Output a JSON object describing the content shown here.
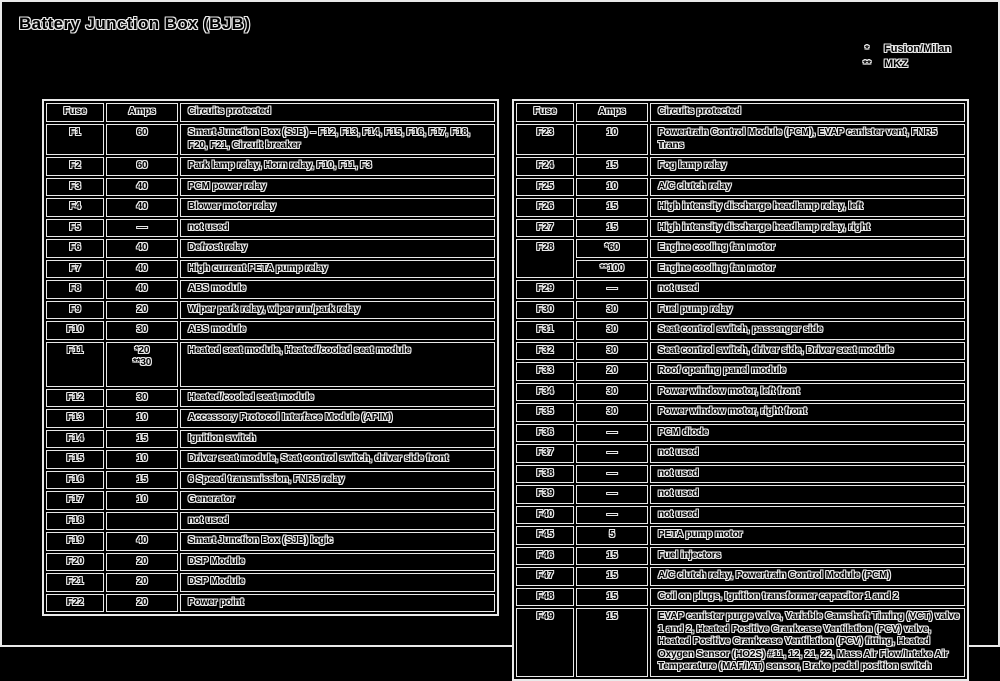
{
  "title": "Battery Junction Box (BJB)",
  "colors": {
    "background": "#000000",
    "line": "#e9e9e9"
  },
  "legend": [
    {
      "marker": "*",
      "label": "Fusion/Milan"
    },
    {
      "marker": "**",
      "label": "MKZ"
    }
  ],
  "tables": [
    {
      "name": "left",
      "headers": [
        "Fuse",
        "Amps",
        "Circuits protected"
      ],
      "rows": [
        {
          "fuse": "F1",
          "subs": [
            [
              "60",
              "Smart Junction Box (SJB) – F12, F13, F14, F15, F16, F17, F18, F20, F21, Circuit breaker"
            ]
          ]
        },
        {
          "fuse": "F2",
          "subs": [
            [
              "60",
              "Park lamp relay, Horn relay, F10, F11, F3"
            ]
          ]
        },
        {
          "fuse": "F3",
          "subs": [
            [
              "40",
              "PCM power relay"
            ]
          ]
        },
        {
          "fuse": "F4",
          "subs": [
            [
              "40",
              "Blower motor relay"
            ]
          ]
        },
        {
          "fuse": "F5",
          "subs": [
            [
              "—",
              "not used"
            ]
          ]
        },
        {
          "fuse": "F6",
          "subs": [
            [
              "40",
              "Defrost relay"
            ]
          ]
        },
        {
          "fuse": "F7",
          "subs": [
            [
              "40",
              "High current PETA pump relay"
            ]
          ]
        },
        {
          "fuse": "F8",
          "subs": [
            [
              "40",
              "ABS module"
            ]
          ]
        },
        {
          "fuse": "F9",
          "subs": [
            [
              "20",
              "Wiper park relay, wiper run/park relay"
            ]
          ]
        },
        {
          "fuse": "F10",
          "subs": [
            [
              "30",
              "ABS module"
            ]
          ]
        },
        {
          "fuse": "F11",
          "subs": [
            [
              "*20\n**30",
              "Heated seat module, Heated/cooled seat module"
            ]
          ]
        },
        {
          "fuse": "F12",
          "subs": [
            [
              "30",
              "Heated/cooled seat module"
            ]
          ]
        },
        {
          "fuse": "F13",
          "subs": [
            [
              "10",
              "Accessory Protocol Interface Module (APIM)"
            ]
          ]
        },
        {
          "fuse": "F14",
          "subs": [
            [
              "15",
              "Ignition switch"
            ]
          ]
        },
        {
          "fuse": "F15",
          "subs": [
            [
              "10",
              "Driver seat module, Seat control switch, driver side front"
            ]
          ]
        },
        {
          "fuse": "F16",
          "subs": [
            [
              "15",
              "6 Speed transmission, FNR5 relay"
            ]
          ]
        },
        {
          "fuse": "F17",
          "subs": [
            [
              "10",
              "Generator"
            ]
          ]
        },
        {
          "fuse": "F18",
          "subs": [
            [
              "",
              "not used"
            ]
          ]
        },
        {
          "fuse": "F19",
          "subs": [
            [
              "40",
              "Smart Junction Box (SJB) logic"
            ]
          ]
        },
        {
          "fuse": "F20",
          "subs": [
            [
              "20",
              "DSP Module"
            ]
          ]
        },
        {
          "fuse": "F21",
          "subs": [
            [
              "20",
              "DSP Module"
            ]
          ]
        },
        {
          "fuse": "F22",
          "subs": [
            [
              "20",
              "Power point"
            ]
          ]
        }
      ]
    },
    {
      "name": "right",
      "headers": [
        "Fuse",
        "Amps",
        "Circuits protected"
      ],
      "rows": [
        {
          "fuse": "F23",
          "subs": [
            [
              "10",
              "Powertrain Control Module (PCM), EVAP canister vent, FNR5 Trans"
            ]
          ]
        },
        {
          "fuse": "F24",
          "subs": [
            [
              "15",
              "Fog lamp relay"
            ]
          ]
        },
        {
          "fuse": "F25",
          "subs": [
            [
              "10",
              "A/C clutch relay"
            ]
          ]
        },
        {
          "fuse": "F26",
          "subs": [
            [
              "15",
              "High intensity discharge headlamp relay, left"
            ]
          ]
        },
        {
          "fuse": "F27",
          "subs": [
            [
              "15",
              "High intensity discharge headlamp relay, right"
            ]
          ]
        },
        {
          "fuse": "F28",
          "subs": [
            [
              "*60",
              "Engine cooling fan motor"
            ],
            [
              "**100",
              "Engine cooling fan motor"
            ]
          ]
        },
        {
          "fuse": "F29",
          "subs": [
            [
              "—",
              "not used"
            ]
          ]
        },
        {
          "fuse": "F30",
          "subs": [
            [
              "30",
              "Fuel pump relay"
            ]
          ]
        },
        {
          "fuse": "F31",
          "subs": [
            [
              "30",
              "Seat control switch, passenger side"
            ]
          ]
        },
        {
          "fuse": "F32",
          "subs": [
            [
              "30",
              "Seat control switch, driver side, Driver seat module"
            ]
          ]
        },
        {
          "fuse": "F33",
          "subs": [
            [
              "20",
              "Roof opening panel module"
            ]
          ]
        },
        {
          "fuse": "F34",
          "subs": [
            [
              "30",
              "Power window motor, left front"
            ]
          ]
        },
        {
          "fuse": "F35",
          "subs": [
            [
              "30",
              "Power window motor, right front"
            ]
          ]
        },
        {
          "fuse": "F36",
          "subs": [
            [
              "—",
              "PCM diode"
            ]
          ]
        },
        {
          "fuse": "F37",
          "subs": [
            [
              "—",
              "not used"
            ]
          ]
        },
        {
          "fuse": "F38",
          "subs": [
            [
              "—",
              "not used"
            ]
          ]
        },
        {
          "fuse": "F39",
          "subs": [
            [
              "—",
              "not used"
            ]
          ]
        },
        {
          "fuse": "F40",
          "subs": [
            [
              "—",
              "not used"
            ]
          ]
        },
        {
          "fuse": "F45",
          "subs": [
            [
              "5",
              "PETA pump motor"
            ]
          ]
        },
        {
          "fuse": "F46",
          "subs": [
            [
              "15",
              "Fuel injectors"
            ]
          ]
        },
        {
          "fuse": "F47",
          "subs": [
            [
              "15",
              "A/C clutch relay, Powertrain Control Module (PCM)"
            ]
          ]
        },
        {
          "fuse": "F48",
          "subs": [
            [
              "15",
              "Coil on plugs, Ignition transformer capacitor 1 and 2"
            ]
          ]
        },
        {
          "fuse": "F49",
          "subs": [
            [
              "15",
              "EVAP canister purge valve, Variable Camshaft Timing (VCT) valve 1 and 2, Heated Positive Crankcase Ventilation (PCV) valve, Heated Positive Crankcase Ventilation (PCV) fitting, Heated Oxygen Sensor (HO2S) #11, 12, 21, 22, Mass Air Flow/Intake Air Temperature (MAF/IAT) sensor, Brake pedal position switch"
            ]
          ]
        }
      ]
    }
  ]
}
